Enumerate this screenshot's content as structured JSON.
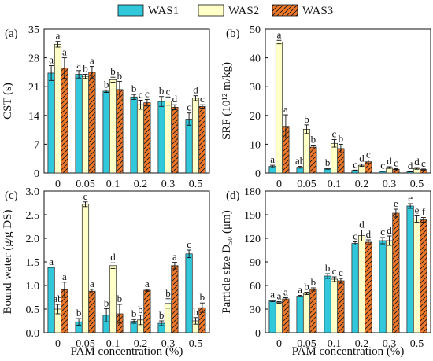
{
  "colors": {
    "WAS1": "#32C8DC",
    "WAS2": "#FFFFC8",
    "WAS3": "#F07828"
  },
  "legend": [
    {
      "name": "WAS1",
      "style": "solid"
    },
    {
      "name": "WAS2",
      "style": "solid"
    },
    {
      "name": "WAS3",
      "style": "hatch"
    }
  ],
  "shared_x": {
    "label": "PAM concentration (%)",
    "categories": [
      "0",
      "0.05",
      "0.1",
      "0.2",
      "0.3",
      "0.5"
    ]
  },
  "chart_data": [
    {
      "type": "bar",
      "panel": "(a)",
      "ylabel": "CST (s)",
      "ylim": [
        0,
        35
      ],
      "yticks": [
        "0",
        "7",
        "14",
        "21",
        "28",
        "35"
      ],
      "show_xlabel": false,
      "series": [
        {
          "name": "WAS1",
          "values": [
            24.3,
            24.0,
            19.9,
            18.5,
            17.4,
            13.1
          ],
          "errors": [
            1.8,
            0.9,
            0.3,
            0.6,
            1.2,
            1.5
          ],
          "letters": [
            "a",
            "a",
            "b",
            "b",
            "b",
            "c"
          ]
        },
        {
          "name": "WAS2",
          "values": [
            31.3,
            23.5,
            22.7,
            16.6,
            17.5,
            18.2
          ],
          "errors": [
            0.7,
            0.5,
            0.6,
            1.1,
            1.0,
            0.6
          ],
          "letters": [
            "a",
            "b",
            "b",
            "c",
            "c",
            "d"
          ]
        },
        {
          "name": "WAS3",
          "values": [
            25.5,
            24.5,
            20.3,
            17.1,
            16.0,
            16.2
          ],
          "errors": [
            2.5,
            1.4,
            2.0,
            0.8,
            0.6,
            0.4
          ],
          "letters": [
            "a",
            "a",
            "b",
            "c",
            "d",
            "c"
          ]
        }
      ]
    },
    {
      "type": "bar",
      "panel": "(b)",
      "ylabel": "SRF (10¹² m/kg)",
      "ylim": [
        0,
        50
      ],
      "yticks": [
        "0",
        "10",
        "20",
        "30",
        "40",
        "50"
      ],
      "show_xlabel": false,
      "series": [
        {
          "name": "WAS1",
          "values": [
            2.3,
            2.0,
            1.5,
            0.9,
            0.6,
            0.5
          ],
          "errors": [
            0.4,
            0.3,
            0.2,
            0.1,
            0.1,
            0.1
          ],
          "letters": [
            "a",
            "ab",
            "b",
            "c",
            "c",
            "d"
          ]
        },
        {
          "name": "WAS2",
          "values": [
            45.5,
            15.2,
            10.3,
            2.7,
            1.9,
            1.6
          ],
          "errors": [
            0.6,
            1.5,
            1.3,
            0.4,
            0.3,
            0.3
          ],
          "letters": [
            "a",
            "b",
            "c",
            "d",
            "d",
            "d"
          ]
        },
        {
          "name": "WAS3",
          "values": [
            16.2,
            9.0,
            8.5,
            3.9,
            1.3,
            1.2
          ],
          "errors": [
            4.0,
            0.7,
            1.5,
            0.6,
            0.2,
            0.2
          ],
          "letters": [
            "a",
            "b",
            "b",
            "c",
            "c",
            "c"
          ]
        }
      ]
    },
    {
      "type": "bar",
      "panel": "(c)",
      "ylabel": "Bound water (g/g DS)",
      "ylim": [
        0,
        3.0
      ],
      "yticks": [
        "0.0",
        "0.5",
        "1.0",
        "1.5",
        "2.0",
        "2.5",
        "3.0"
      ],
      "show_xlabel": true,
      "series": [
        {
          "name": "WAS1",
          "values": [
            1.38,
            0.23,
            0.37,
            0.24,
            0.2,
            1.67
          ],
          "errors": [
            0.0,
            0.07,
            0.14,
            0.04,
            0.05,
            0.08
          ],
          "letters": [
            "a",
            "b",
            "b",
            "b",
            "b",
            "c"
          ]
        },
        {
          "name": "WAS2",
          "values": [
            0.5,
            2.72,
            1.42,
            0.27,
            0.62,
            0.25
          ],
          "errors": [
            0.1,
            0.05,
            0.06,
            0.1,
            0.1,
            0.07
          ],
          "letters": [
            "ab",
            "c",
            "d",
            "b",
            "b",
            "b"
          ]
        },
        {
          "name": "WAS3",
          "values": [
            0.91,
            0.88,
            0.4,
            0.9,
            1.42,
            0.53
          ],
          "errors": [
            0.16,
            0.04,
            0.2,
            0.02,
            0.07,
            0.1
          ],
          "letters": [
            "a",
            "a",
            "b",
            "a",
            "a",
            "b"
          ]
        }
      ]
    },
    {
      "type": "bar",
      "panel": "(d)",
      "ylabel": "Particle size D₅₀ (μm)",
      "ylim": [
        0,
        180
      ],
      "yticks": [
        "0",
        "30",
        "60",
        "90",
        "120",
        "150",
        "180"
      ],
      "show_xlabel": true,
      "series": [
        {
          "name": "WAS1",
          "values": [
            40.5,
            46.5,
            72.0,
            113.5,
            117.0,
            161.0
          ],
          "errors": [
            1.0,
            1.0,
            3.0,
            2.0,
            4.0,
            3.0
          ],
          "letters": [
            "a",
            "a",
            "b",
            "c",
            "c",
            "e"
          ]
        },
        {
          "name": "WAS2",
          "values": [
            38.5,
            50.0,
            68.0,
            123.5,
            117.0,
            144.5
          ],
          "errors": [
            1.0,
            1.5,
            3.0,
            7.0,
            6.0,
            4.0
          ],
          "letters": [
            "a",
            "b",
            "c",
            "d",
            "d",
            "e"
          ]
        },
        {
          "name": "WAS3",
          "values": [
            43.0,
            55.0,
            66.0,
            115.0,
            152.0,
            143.5
          ],
          "errors": [
            1.5,
            2.0,
            3.0,
            3.0,
            5.0,
            3.0
          ],
          "letters": [
            "a",
            "b",
            "c",
            "d",
            "e",
            "f"
          ]
        }
      ]
    }
  ]
}
